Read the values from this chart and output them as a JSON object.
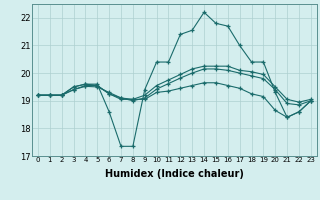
{
  "xlabel": "Humidex (Indice chaleur)",
  "background_color": "#d4eeee",
  "grid_color": "#aed0d0",
  "line_color": "#1a6b6b",
  "xlim": [
    -0.5,
    23.5
  ],
  "ylim": [
    17,
    22.5
  ],
  "yticks": [
    17,
    18,
    19,
    20,
    21,
    22
  ],
  "xticks": [
    0,
    1,
    2,
    3,
    4,
    5,
    6,
    7,
    8,
    9,
    10,
    11,
    12,
    13,
    14,
    15,
    16,
    17,
    18,
    19,
    20,
    21,
    22,
    23
  ],
  "lines": [
    [
      19.2,
      19.2,
      19.2,
      19.5,
      19.6,
      19.6,
      18.6,
      17.35,
      17.35,
      19.4,
      20.4,
      20.4,
      21.4,
      21.55,
      22.2,
      21.8,
      21.7,
      21.0,
      20.4,
      20.4,
      19.3,
      18.4,
      18.6,
      19.0
    ],
    [
      19.2,
      19.2,
      19.2,
      19.5,
      19.6,
      19.55,
      19.25,
      19.05,
      19.05,
      19.05,
      19.3,
      19.35,
      19.45,
      19.55,
      19.65,
      19.65,
      19.55,
      19.45,
      19.25,
      19.15,
      18.65,
      18.4,
      18.6,
      19.0
    ],
    [
      19.2,
      19.2,
      19.2,
      19.4,
      19.55,
      19.55,
      19.25,
      19.1,
      19.05,
      19.2,
      19.55,
      19.75,
      19.95,
      20.15,
      20.25,
      20.25,
      20.25,
      20.1,
      20.05,
      19.95,
      19.5,
      19.05,
      18.95,
      19.05
    ],
    [
      19.2,
      19.2,
      19.2,
      19.4,
      19.52,
      19.5,
      19.3,
      19.1,
      19.0,
      19.1,
      19.42,
      19.62,
      19.82,
      20.0,
      20.15,
      20.15,
      20.1,
      20.0,
      19.9,
      19.8,
      19.4,
      18.9,
      18.85,
      19.0
    ]
  ]
}
